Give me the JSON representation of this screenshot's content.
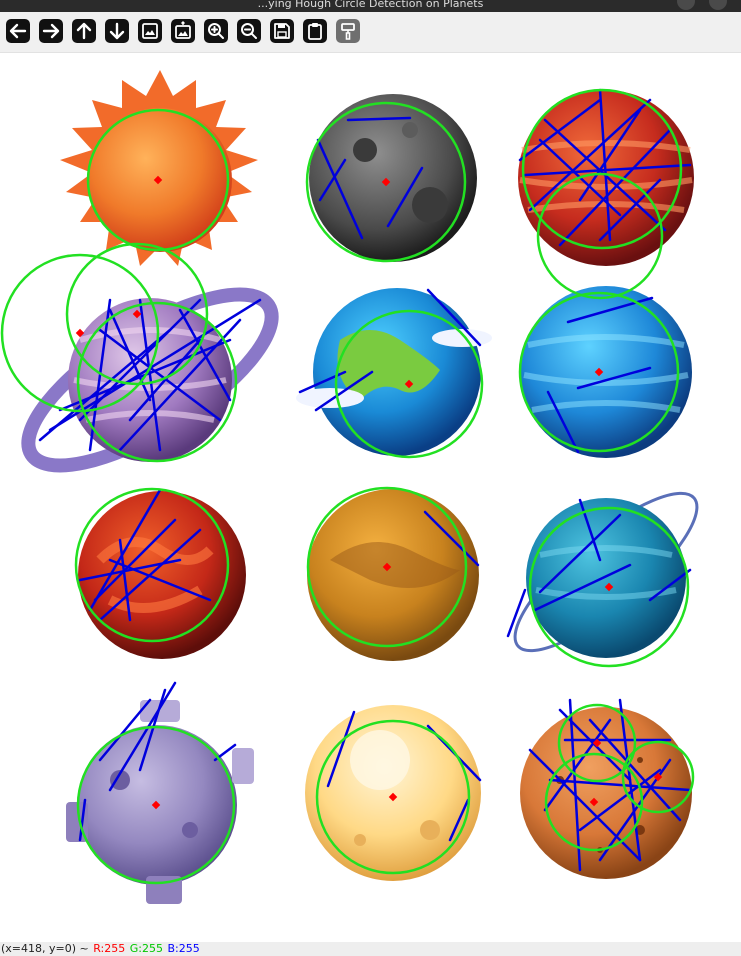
{
  "window": {
    "title": "...ying Hough Circle Detection on Planets"
  },
  "toolbar": {
    "buttons": [
      {
        "name": "pan-left-button",
        "icon": "arrow-left-icon"
      },
      {
        "name": "pan-right-button",
        "icon": "arrow-right-icon"
      },
      {
        "name": "pan-up-button",
        "icon": "arrow-up-icon"
      },
      {
        "name": "pan-down-button",
        "icon": "arrow-down-icon"
      },
      {
        "name": "zoom-to-fit-button",
        "icon": "image-icon"
      },
      {
        "name": "zoom-original-button",
        "icon": "image-expand-icon"
      },
      {
        "name": "zoom-in-button",
        "icon": "zoom-in-icon"
      },
      {
        "name": "zoom-out-button",
        "icon": "zoom-out-icon"
      },
      {
        "name": "save-image-button",
        "icon": "save-icon"
      },
      {
        "name": "copy-clipboard-button",
        "icon": "clipboard-icon"
      },
      {
        "name": "properties-button",
        "icon": "paint-roller-icon"
      }
    ]
  },
  "status": {
    "coords": "(x=418, y=0) ~",
    "r": "R:255",
    "g": "G:255",
    "b": "B:255",
    "colors": {
      "r": "#ff0000",
      "g": "#00c800",
      "b": "#0000ff"
    }
  },
  "colors": {
    "detected_circle": "#22e022",
    "center_dot": "#ff0000",
    "line_segment": "#0000dd"
  }
}
